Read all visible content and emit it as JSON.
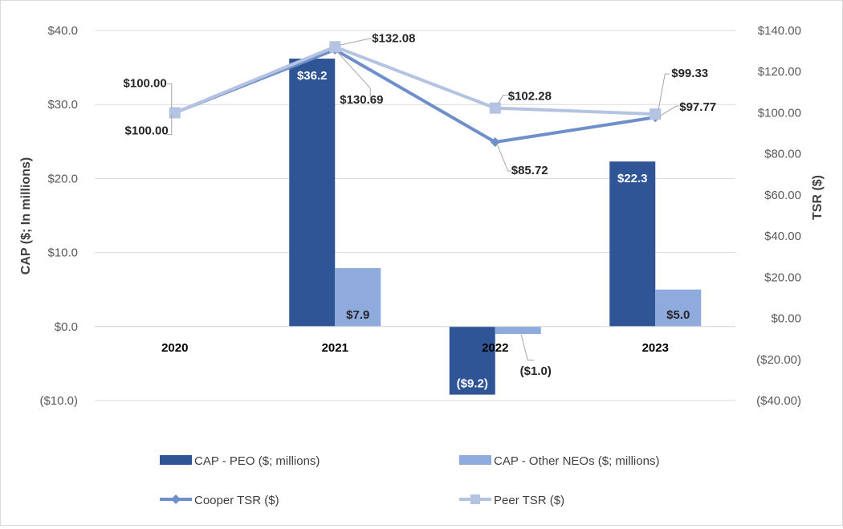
{
  "chart_data": {
    "type": "bar+line",
    "title": "",
    "categories": [
      "2020",
      "2021",
      "2022",
      "2023"
    ],
    "y_left": {
      "label": "CAP ($; In millions)",
      "range": [
        -10,
        40
      ],
      "ticks": [
        "($10.0)",
        "$0.0",
        "$10.0",
        "$20.0",
        "$30.0",
        "$40.0"
      ]
    },
    "y_right": {
      "label": "TSR ($)",
      "range": [
        -40,
        140
      ],
      "ticks": [
        "($40.00)",
        "($20.00)",
        "$0.00",
        "$20.00",
        "$40.00",
        "$60.00",
        "$80.00",
        "$100.00",
        "$120.00",
        "$140.00"
      ]
    },
    "bar_series": [
      {
        "name": "CAP - PEO ($; millions)",
        "color": "#2F5597",
        "label_color": "#ffffff",
        "values": [
          null,
          36.2,
          -9.2,
          22.3
        ],
        "labels": [
          "",
          "$36.2",
          "($9.2)",
          "$22.3"
        ]
      },
      {
        "name": "CAP - Other NEOs ($; millions)",
        "color": "#8FAADC",
        "label_color": "#262626",
        "values": [
          null,
          7.9,
          -1.0,
          5.0
        ],
        "labels": [
          "",
          "$7.9",
          "($1.0)",
          "$5.0"
        ]
      }
    ],
    "line_series": [
      {
        "name": "Cooper TSR ($)",
        "color": "#6F8FCB",
        "marker": "diamond",
        "values": [
          100.0,
          130.69,
          85.72,
          97.77
        ],
        "labels": [
          "$100.00",
          "$130.69",
          "$85.72",
          "$97.77"
        ]
      },
      {
        "name": "Peer TSR ($)",
        "color": "#B4C3E2",
        "marker": "square",
        "values": [
          100.0,
          132.08,
          102.28,
          99.33
        ],
        "labels": [
          "$100.00",
          "$132.08",
          "$102.28",
          "$99.33"
        ]
      }
    ],
    "grid": true,
    "legend_position": "bottom"
  }
}
